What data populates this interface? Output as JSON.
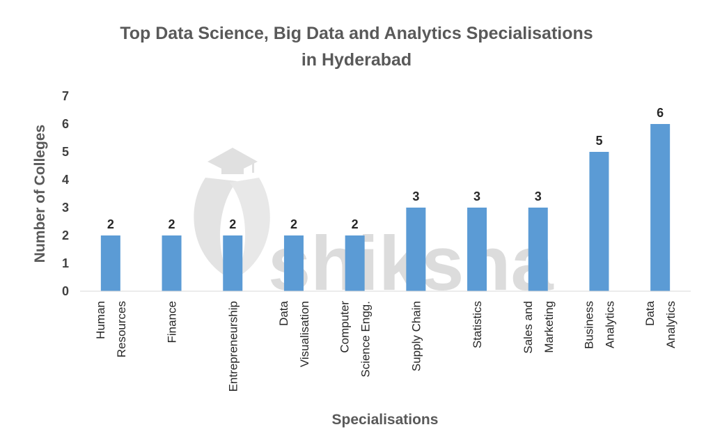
{
  "chart_data": {
    "type": "bar",
    "title": [
      "Top Data Science, Big Data and Analytics Specialisations",
      "in Hyderabad"
    ],
    "xlabel": "Specialisations",
    "ylabel": "Number of Colleges",
    "ylim": [
      0,
      7
    ],
    "yticks": [
      "0",
      "1",
      "2",
      "3",
      "4",
      "5",
      "6",
      "7"
    ],
    "categories": [
      [
        "Human",
        "Resources"
      ],
      [
        "Finance"
      ],
      [
        "Entrepreneurship"
      ],
      [
        "Data",
        "Visualisation"
      ],
      [
        "Computer",
        "Science Engg."
      ],
      [
        "Supply Chain"
      ],
      [
        "Statistics"
      ],
      [
        "Sales and",
        "Marketing"
      ],
      [
        "Business",
        "Analytics"
      ],
      [
        "Data",
        "Analytics"
      ]
    ],
    "values": [
      2,
      2,
      2,
      2,
      2,
      3,
      3,
      3,
      5,
      6
    ],
    "data_labels": [
      "2",
      "2",
      "2",
      "2",
      "2",
      "3",
      "3",
      "3",
      "5",
      "6"
    ],
    "bar_color": "#5b9bd5",
    "grid": false,
    "legend": "none"
  },
  "watermark": {
    "text": "shiksha",
    "icon": "graduation-cap-icon",
    "color": "#dcdcdc"
  }
}
